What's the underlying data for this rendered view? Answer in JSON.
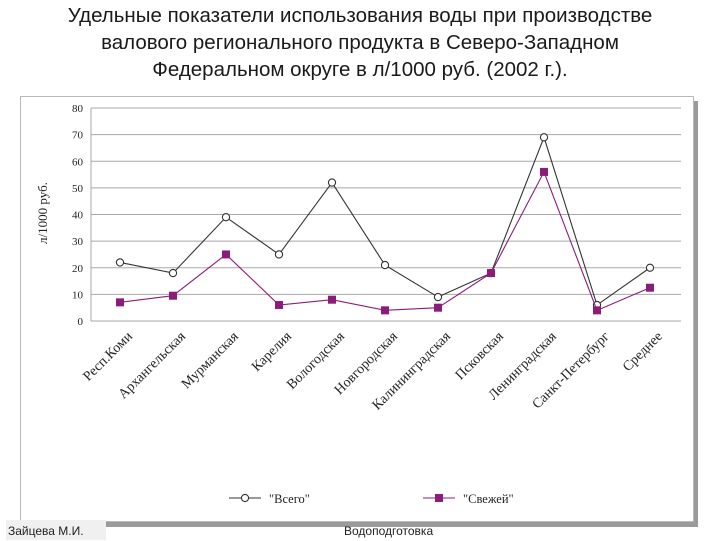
{
  "title_lines": [
    "Удельные показатели использования воды при производстве",
    "валового регионального продукта в Северо-Западном",
    "Федеральном округе  в л/1000 руб. (2002 г.)."
  ],
  "footer": {
    "author": "Зайцева М.И.",
    "course": "Водоподготовка"
  },
  "chart_data": {
    "type": "line",
    "title": "",
    "ylabel": "л/1000 руб.",
    "xlabel": "",
    "ylim": [
      0,
      80
    ],
    "ytick_step": 10,
    "grid": true,
    "legend_position": "bottom",
    "categories": [
      "Респ.Коми",
      "Архангельская",
      "Мурманская",
      "Карелия",
      "Вологодская",
      "Новгородская",
      "Калининградская",
      "Псковская",
      "Ленинградская",
      "Санкт-Петербург",
      "Среднее"
    ],
    "series": [
      {
        "name": "\"Всего\"",
        "marker": "circle",
        "color": "#333333",
        "values": [
          22,
          18,
          39,
          25,
          52,
          21,
          9,
          18,
          69,
          6,
          20
        ]
      },
      {
        "name": "\"Свежей\"",
        "marker": "square",
        "color": "#8b1c7a",
        "values": [
          7,
          9.5,
          25,
          6,
          8,
          4,
          5,
          18,
          56,
          4,
          12.5
        ]
      }
    ]
  }
}
